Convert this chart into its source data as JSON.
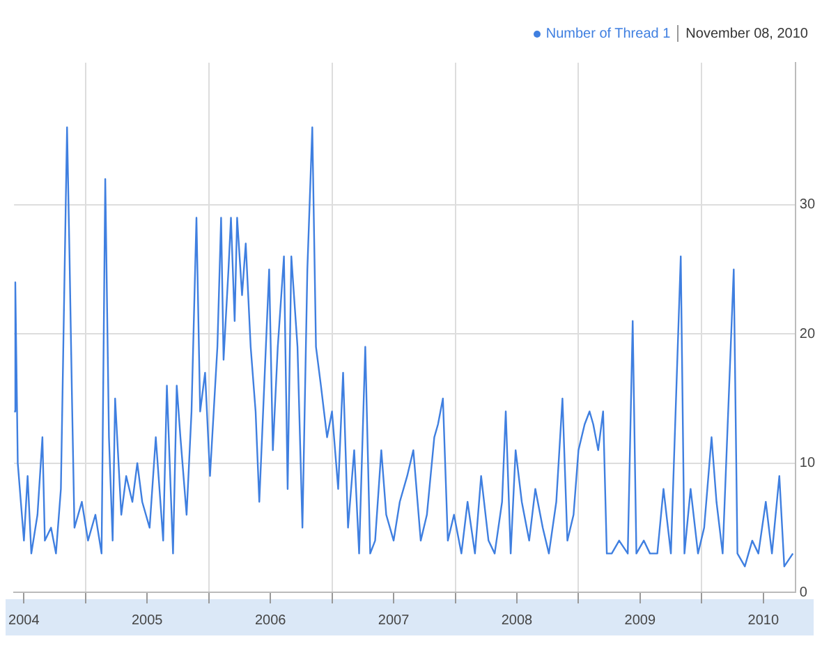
{
  "chart_data": {
    "type": "line",
    "legend": "top right",
    "grid": true,
    "marker": "none",
    "line_style": "solid",
    "annotations": [
      "November 08, 2010"
    ],
    "xlim": [
      2003.92,
      2010.26
    ],
    "xticks": [
      2004,
      {
        "value": 2004.5,
        "label": null
      },
      2005,
      {
        "value": 2005.5,
        "label": null
      },
      2006,
      {
        "value": 2006.5,
        "label": null
      },
      2007,
      {
        "value": 2007.5,
        "label": null
      },
      2008,
      {
        "value": 2008.5,
        "label": null
      },
      2009,
      {
        "value": 2009.5,
        "label": null
      },
      2010
    ],
    "ylim": [
      0,
      41
    ],
    "yticks": [
      0,
      10,
      20,
      30
    ],
    "series": [
      {
        "name": "Number of Thread 1",
        "color": "#3f7fe0",
        "x": [
          2003.92,
          2003.93,
          2003.95,
          2004.0,
          2004.03,
          2004.06,
          2004.11,
          2004.15,
          2004.17,
          2004.22,
          2004.26,
          2004.3,
          2004.35,
          2004.37,
          2004.39,
          2004.41,
          2004.47,
          2004.52,
          2004.58,
          2004.63,
          2004.66,
          2004.69,
          2004.72,
          2004.74,
          2004.79,
          2004.83,
          2004.88,
          2004.92,
          2004.96,
          2005.02,
          2005.07,
          2005.13,
          2005.16,
          2005.21,
          2005.24,
          2005.27,
          2005.32,
          2005.36,
          2005.4,
          2005.43,
          2005.47,
          2005.51,
          2005.57,
          2005.6,
          2005.62,
          2005.66,
          2005.68,
          2005.71,
          2005.73,
          2005.77,
          2005.8,
          2005.84,
          2005.88,
          2005.91,
          2005.95,
          2005.99,
          2006.02,
          2006.06,
          2006.11,
          2006.14,
          2006.17,
          2006.22,
          2006.26,
          2006.3,
          2006.34,
          2006.37,
          2006.41,
          2006.46,
          2006.5,
          2006.55,
          2006.59,
          2006.63,
          2006.68,
          2006.72,
          2006.77,
          2006.81,
          2006.85,
          2006.9,
          2006.94,
          2007.0,
          2007.05,
          2007.11,
          2007.16,
          2007.22,
          2007.27,
          2007.33,
          2007.36,
          2007.4,
          2007.44,
          2007.49,
          2007.55,
          2007.6,
          2007.66,
          2007.71,
          2007.77,
          2007.82,
          2007.88,
          2007.91,
          2007.95,
          2007.99,
          2008.04,
          2008.1,
          2008.15,
          2008.21,
          2008.26,
          2008.32,
          2008.37,
          2008.41,
          2008.46,
          2008.5,
          2008.55,
          2008.59,
          2008.62,
          2008.66,
          2008.7,
          2008.73,
          2008.77,
          2008.83,
          2008.9,
          2008.94,
          2008.97,
          2009.03,
          2009.08,
          2009.14,
          2009.19,
          2009.25,
          2009.33,
          2009.36,
          2009.41,
          2009.47,
          2009.52,
          2009.58,
          2009.62,
          2009.67,
          2009.76,
          2009.79,
          2009.85,
          2009.91,
          2009.96,
          2010.02,
          2010.07,
          2010.13,
          2010.17,
          2010.24
        ],
        "values": [
          14,
          24,
          10,
          4,
          9,
          3,
          6,
          12,
          4,
          5,
          3,
          8,
          36,
          26,
          15,
          5,
          7,
          4,
          6,
          3,
          32,
          12,
          4,
          15,
          6,
          9,
          7,
          10,
          7,
          5,
          12,
          4,
          16,
          3,
          16,
          12,
          6,
          14,
          29,
          14,
          17,
          9,
          19,
          29,
          18,
          25,
          29,
          21,
          29,
          23,
          27,
          19,
          14,
          7,
          16,
          25,
          11,
          19,
          26,
          8,
          26,
          19,
          5,
          25,
          36,
          19,
          16,
          12,
          14,
          8,
          17,
          5,
          11,
          3,
          19,
          3,
          4,
          11,
          6,
          4,
          7,
          9,
          11,
          4,
          6,
          12,
          13,
          15,
          4,
          6,
          3,
          7,
          3,
          9,
          4,
          3,
          7,
          14,
          3,
          11,
          7,
          4,
          8,
          5,
          3,
          7,
          15,
          4,
          6,
          11,
          13,
          14,
          13,
          11,
          14,
          3,
          3,
          4,
          3,
          21,
          3,
          4,
          3,
          3,
          8,
          3,
          26,
          3,
          8,
          3,
          5,
          12,
          7,
          3,
          25,
          3,
          2,
          4,
          3,
          7,
          3,
          9,
          2,
          3
        ]
      }
    ]
  }
}
